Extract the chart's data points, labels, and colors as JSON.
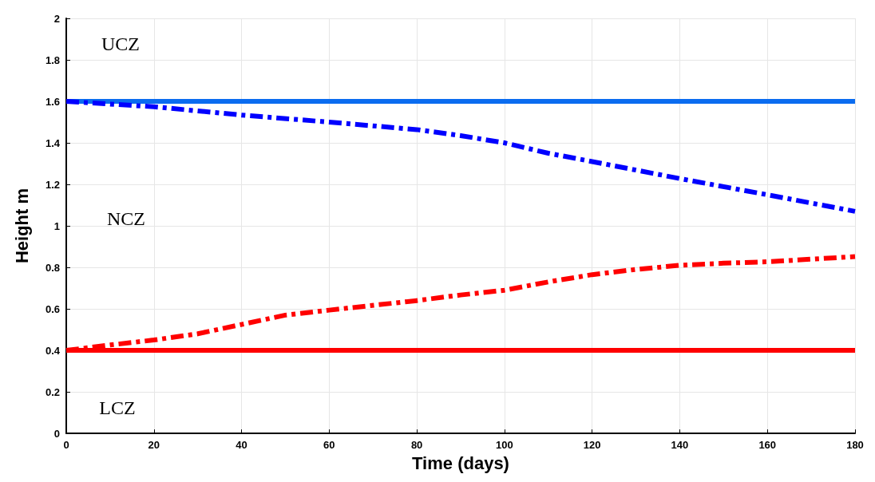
{
  "chart_data": {
    "type": "line",
    "xlabel": "Time (days)",
    "ylabel": "Height m",
    "xlim": [
      0,
      180
    ],
    "xticks": [
      0,
      20,
      40,
      60,
      80,
      100,
      120,
      140,
      160,
      180
    ],
    "ylim": [
      0,
      2
    ],
    "yticks": [
      0,
      0.2,
      0.4,
      0.6,
      0.8,
      1,
      1.2,
      1.4,
      1.6,
      1.8,
      2
    ],
    "grid": true,
    "marker": "none",
    "series": [
      {
        "color": "#0a6cf0",
        "line_style": "solid",
        "x": [
          0,
          180
        ],
        "values": [
          1.6,
          1.6
        ]
      },
      {
        "color": "#0000ff",
        "line_style": "dashed",
        "x": [
          0,
          20,
          40,
          60,
          80,
          90,
          100,
          110,
          120,
          140,
          160,
          180
        ],
        "values": [
          1.6,
          1.574,
          1.534,
          1.5,
          1.464,
          1.435,
          1.4,
          1.35,
          1.31,
          1.228,
          1.15,
          1.07
        ]
      },
      {
        "color": "#ff0000",
        "line_style": "dashed",
        "x": [
          0,
          10,
          20,
          30,
          40,
          50,
          60,
          80,
          90,
          100,
          110,
          120,
          130,
          140,
          150,
          160,
          180
        ],
        "values": [
          0.4,
          0.426,
          0.45,
          0.48,
          0.525,
          0.57,
          0.594,
          0.64,
          0.667,
          0.69,
          0.73,
          0.765,
          0.79,
          0.81,
          0.82,
          0.827,
          0.852
        ]
      },
      {
        "color": "#ff0000",
        "line_style": "solid",
        "x": [
          0,
          180
        ],
        "values": [
          0.4,
          0.4
        ]
      }
    ],
    "annotations": [
      "UCZ",
      "NCZ",
      "LCZ"
    ]
  }
}
